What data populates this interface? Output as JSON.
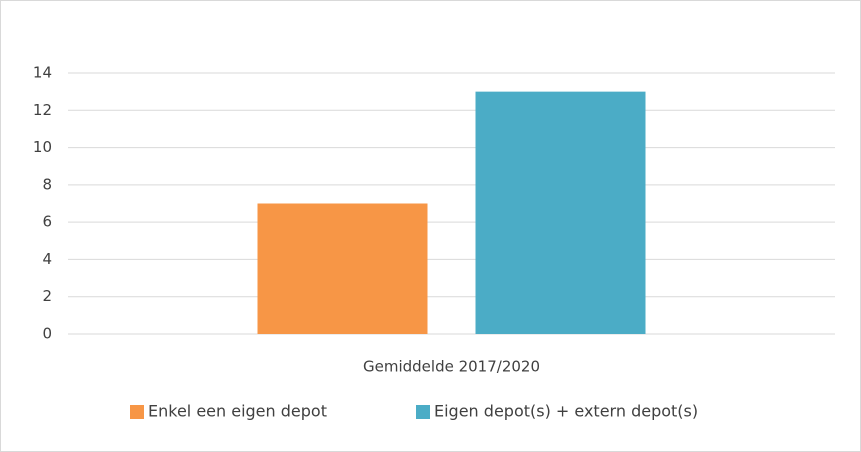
{
  "chart_data": {
    "type": "bar",
    "categories": [
      "Gemiddelde 2017/2020"
    ],
    "series": [
      {
        "name": "Enkel een eigen depot",
        "color": "#f79646",
        "values": [
          7
        ]
      },
      {
        "name": "Eigen depot(s) + extern depot(s)",
        "color": "#4bacc6",
        "values": [
          13
        ]
      }
    ],
    "ylim": [
      0,
      14
    ],
    "yticks": [
      0,
      2,
      4,
      6,
      8,
      10,
      12,
      14
    ],
    "grid": true,
    "legend": "bottom"
  }
}
